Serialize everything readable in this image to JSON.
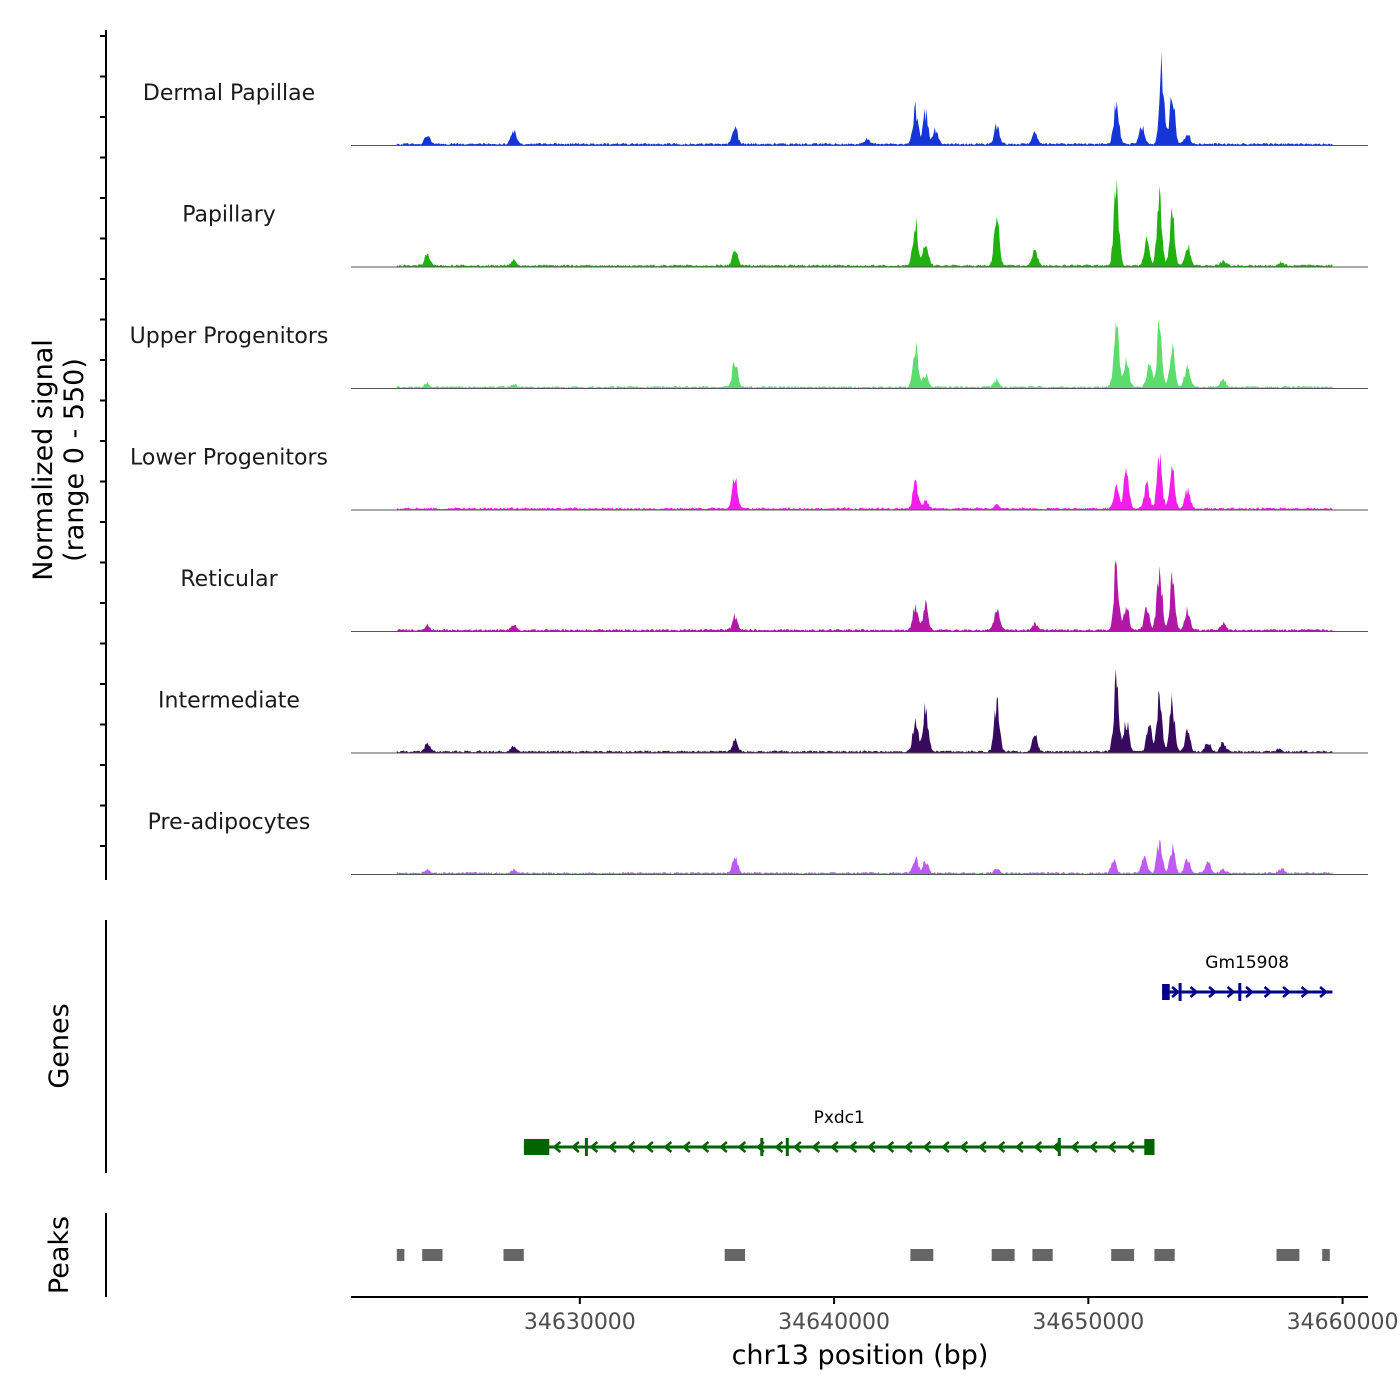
{
  "chart_data": {
    "type": "area",
    "chromosome": "chr13",
    "region": [
      34621000,
      34661000
    ],
    "xlabel": "chr13 position (bp)",
    "ylabel": "Normalized signal",
    "ylabel_range": "(range 0 - 550)",
    "ylim": [
      0,
      550
    ],
    "x_ticks": [
      {
        "value": 34630000,
        "label": "34630000"
      },
      {
        "value": 34640000,
        "label": "34640000"
      },
      {
        "value": 34650000,
        "label": "34650000"
      },
      {
        "value": 34660000,
        "label": "34660000"
      }
    ],
    "tracks": [
      {
        "name": "Dermal Papillae",
        "color": "#1535D6",
        "peaks": [
          [
            34624000,
            55
          ],
          [
            34627400,
            90
          ],
          [
            34636100,
            100
          ],
          [
            34641300,
            30
          ],
          [
            34643200,
            220
          ],
          [
            34643600,
            200
          ],
          [
            34644000,
            90
          ],
          [
            34646400,
            110
          ],
          [
            34647900,
            70
          ],
          [
            34651100,
            260
          ],
          [
            34652100,
            110
          ],
          [
            34652900,
            480
          ],
          [
            34653300,
            300
          ],
          [
            34653900,
            70
          ]
        ]
      },
      {
        "name": "Papillary",
        "color": "#20B010",
        "peaks": [
          [
            34624000,
            80
          ],
          [
            34627400,
            35
          ],
          [
            34636100,
            100
          ],
          [
            34643200,
            270
          ],
          [
            34643600,
            170
          ],
          [
            34646400,
            280
          ],
          [
            34647900,
            100
          ],
          [
            34651100,
            450
          ],
          [
            34652300,
            170
          ],
          [
            34652800,
            410
          ],
          [
            34653300,
            300
          ],
          [
            34653900,
            130
          ],
          [
            34655300,
            30
          ],
          [
            34657600,
            20
          ]
        ]
      },
      {
        "name": "Upper Progenitors",
        "color": "#5CDC6C",
        "peaks": [
          [
            34624000,
            25
          ],
          [
            34627400,
            20
          ],
          [
            34636100,
            170
          ],
          [
            34643200,
            250
          ],
          [
            34643600,
            80
          ],
          [
            34646400,
            50
          ],
          [
            34651100,
            410
          ],
          [
            34651500,
            180
          ],
          [
            34652400,
            160
          ],
          [
            34652800,
            380
          ],
          [
            34653300,
            240
          ],
          [
            34653900,
            150
          ],
          [
            34655300,
            40
          ]
        ]
      },
      {
        "name": "Lower Progenitors",
        "color": "#F41EEC",
        "peaks": [
          [
            34636100,
            190
          ],
          [
            34643200,
            160
          ],
          [
            34643600,
            50
          ],
          [
            34646400,
            25
          ],
          [
            34651100,
            130
          ],
          [
            34651500,
            250
          ],
          [
            34652300,
            160
          ],
          [
            34652800,
            330
          ],
          [
            34653300,
            240
          ],
          [
            34653900,
            120
          ]
        ]
      },
      {
        "name": "Reticular",
        "color": "#B018A8",
        "peaks": [
          [
            34624000,
            30
          ],
          [
            34627400,
            30
          ],
          [
            34636100,
            90
          ],
          [
            34643200,
            150
          ],
          [
            34643600,
            150
          ],
          [
            34646400,
            140
          ],
          [
            34647900,
            40
          ],
          [
            34651100,
            410
          ],
          [
            34651500,
            160
          ],
          [
            34652300,
            150
          ],
          [
            34652800,
            390
          ],
          [
            34653300,
            300
          ],
          [
            34653900,
            140
          ],
          [
            34655300,
            40
          ]
        ]
      },
      {
        "name": "Intermediate",
        "color": "#380A5E",
        "peaks": [
          [
            34624000,
            50
          ],
          [
            34627400,
            40
          ],
          [
            34636100,
            70
          ],
          [
            34643200,
            200
          ],
          [
            34643600,
            280
          ],
          [
            34646400,
            320
          ],
          [
            34647900,
            110
          ],
          [
            34651100,
            440
          ],
          [
            34651500,
            180
          ],
          [
            34652400,
            180
          ],
          [
            34652800,
            340
          ],
          [
            34653300,
            300
          ],
          [
            34653900,
            130
          ],
          [
            34654700,
            60
          ],
          [
            34655300,
            60
          ],
          [
            34657500,
            20
          ]
        ]
      },
      {
        "name": "Pre-adipocytes",
        "color": "#BE5AF6",
        "peaks": [
          [
            34624000,
            20
          ],
          [
            34627400,
            20
          ],
          [
            34636100,
            100
          ],
          [
            34643200,
            100
          ],
          [
            34643600,
            80
          ],
          [
            34646400,
            30
          ],
          [
            34651000,
            80
          ],
          [
            34652200,
            110
          ],
          [
            34652800,
            210
          ],
          [
            34653300,
            160
          ],
          [
            34653900,
            90
          ],
          [
            34654700,
            80
          ],
          [
            34655300,
            20
          ],
          [
            34657600,
            30
          ]
        ]
      }
    ],
    "genes_label": "Genes",
    "genes": [
      {
        "name": "Gm15908",
        "strand": "+",
        "start": 34652900,
        "end": 34659600,
        "color": "#00008B",
        "exons": [
          [
            34652900,
            34653200
          ],
          [
            34653550,
            34653600
          ],
          [
            34655900,
            34655950
          ]
        ]
      },
      {
        "name": "Pxdc1",
        "strand": "-",
        "start": 34627800,
        "end": 34652600,
        "color": "#006400",
        "exons": [
          [
            34627800,
            34628800
          ],
          [
            34630200,
            34630250
          ],
          [
            34637100,
            34637150
          ],
          [
            34638100,
            34638150
          ],
          [
            34648800,
            34648850
          ],
          [
            34652200,
            34652600
          ]
        ]
      }
    ],
    "peaks_label": "Peaks",
    "peak_regions": [
      [
        34622800,
        34623100
      ],
      [
        34623800,
        34624600
      ],
      [
        34627000,
        34627800
      ],
      [
        34635700,
        34636500
      ],
      [
        34643000,
        34643900
      ],
      [
        34646200,
        34647100
      ],
      [
        34647800,
        34648600
      ],
      [
        34650900,
        34651800
      ],
      [
        34652600,
        34653400
      ],
      [
        34657400,
        34658300
      ],
      [
        34659200,
        34659500
      ]
    ],
    "colors": {
      "axis": "#000000",
      "baseline": "#555555",
      "peak_block": "#666666"
    }
  }
}
